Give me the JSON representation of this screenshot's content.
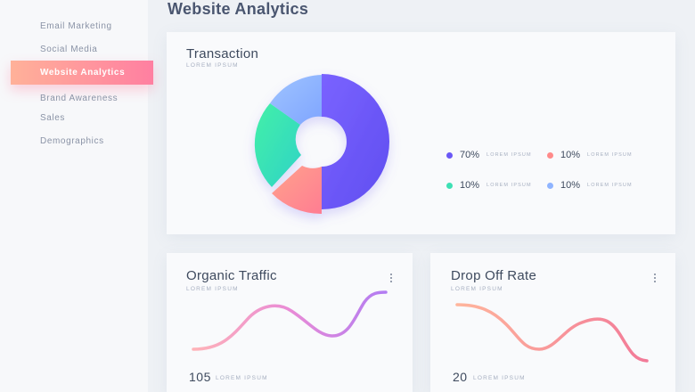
{
  "sidebar": {
    "items": [
      {
        "label": "Email Marketing"
      },
      {
        "label": "Social Media"
      },
      {
        "label": "Website Analytics"
      },
      {
        "label": "Brand Awareness"
      },
      {
        "label": "Sales"
      },
      {
        "label": "Demographics"
      }
    ],
    "active_index": 2
  },
  "page": {
    "title": "Website Analytics"
  },
  "transaction": {
    "title": "Transaction",
    "subtitle": "LOREM IPSUM",
    "legend": [
      {
        "pct": "70%",
        "label": "LOREM IPSUM",
        "color": "#6a57f6"
      },
      {
        "pct": "10%",
        "label": "LOREM IPSUM",
        "color": "#ff8a8a"
      },
      {
        "pct": "10%",
        "label": "LOREM IPSUM",
        "color": "#3ee0b4"
      },
      {
        "pct": "10%",
        "label": "LOREM IPSUM",
        "color": "#8fb4ff"
      }
    ]
  },
  "organic": {
    "title": "Organic Traffic",
    "subtitle": "LOREM IPSUM",
    "stat_value": "105",
    "stat_label": "LOREM IPSUM"
  },
  "dropoff": {
    "title": "Drop Off Rate",
    "subtitle": "LOREM IPSUM",
    "stat_value": "20",
    "stat_label": "LOREM IPSUM"
  },
  "colors": {
    "accent_start": "#ffb199",
    "accent_end": "#ff7fa1",
    "background": "#eef1f5"
  },
  "icons": {
    "menu": "more-vertical-icon"
  }
}
